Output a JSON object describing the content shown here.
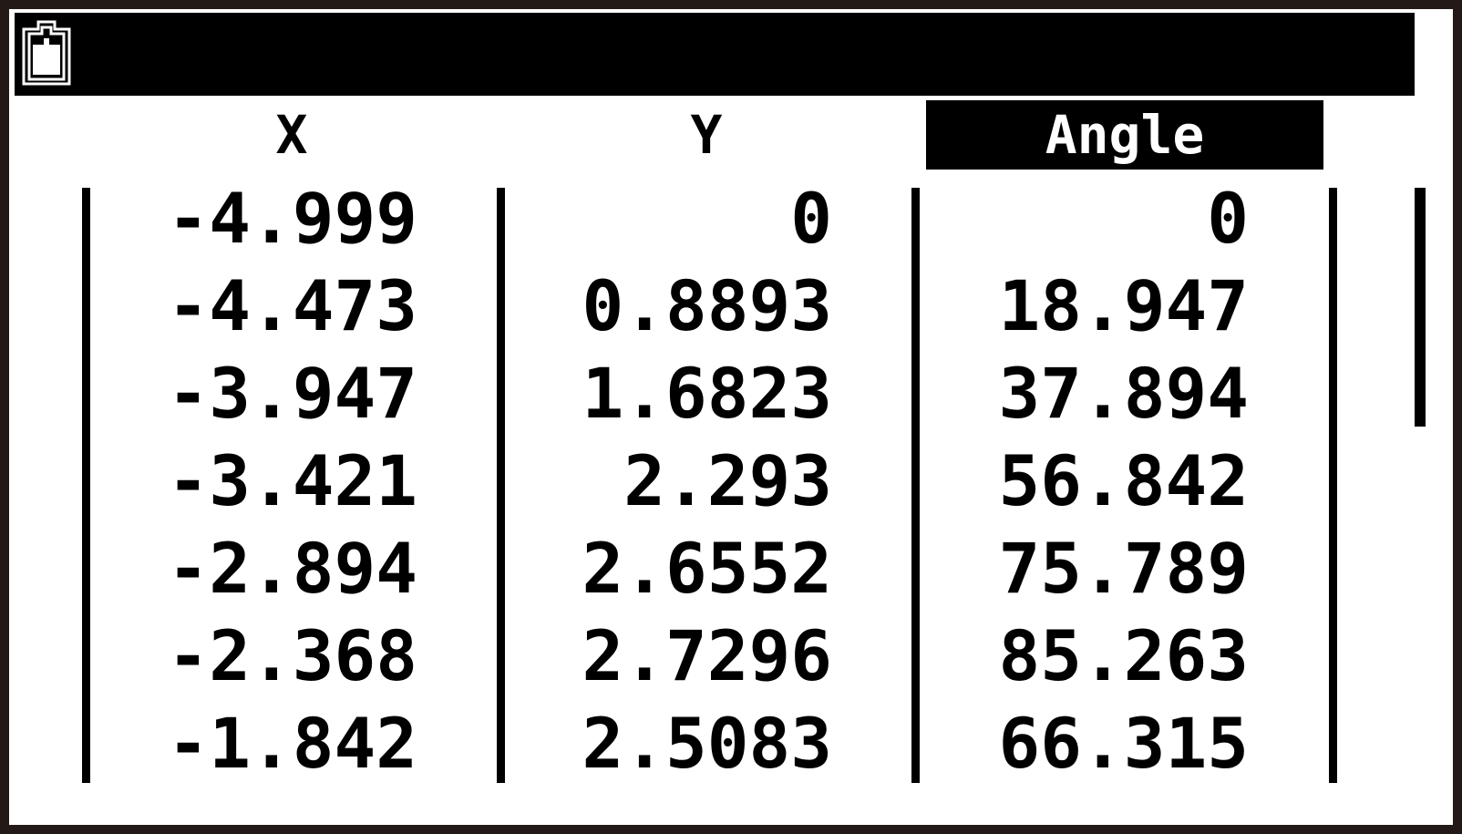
{
  "status_bar": {
    "battery_icon": "battery-icon"
  },
  "table": {
    "headers": [
      "X",
      "Y",
      "Angle"
    ],
    "selected_header": "Angle",
    "rows": [
      [
        "-4.999",
        "0",
        "0"
      ],
      [
        "-4.473",
        "0.8893",
        "18.947"
      ],
      [
        "-3.947",
        "1.6823",
        "37.894"
      ],
      [
        "-3.421",
        "2.293",
        "56.842"
      ],
      [
        "-2.894",
        "2.6552",
        "75.789"
      ],
      [
        "-2.368",
        "2.7296",
        "85.263"
      ],
      [
        "-1.842",
        "2.5083",
        "66.315"
      ]
    ]
  },
  "scrollbar": {
    "position": "top"
  }
}
